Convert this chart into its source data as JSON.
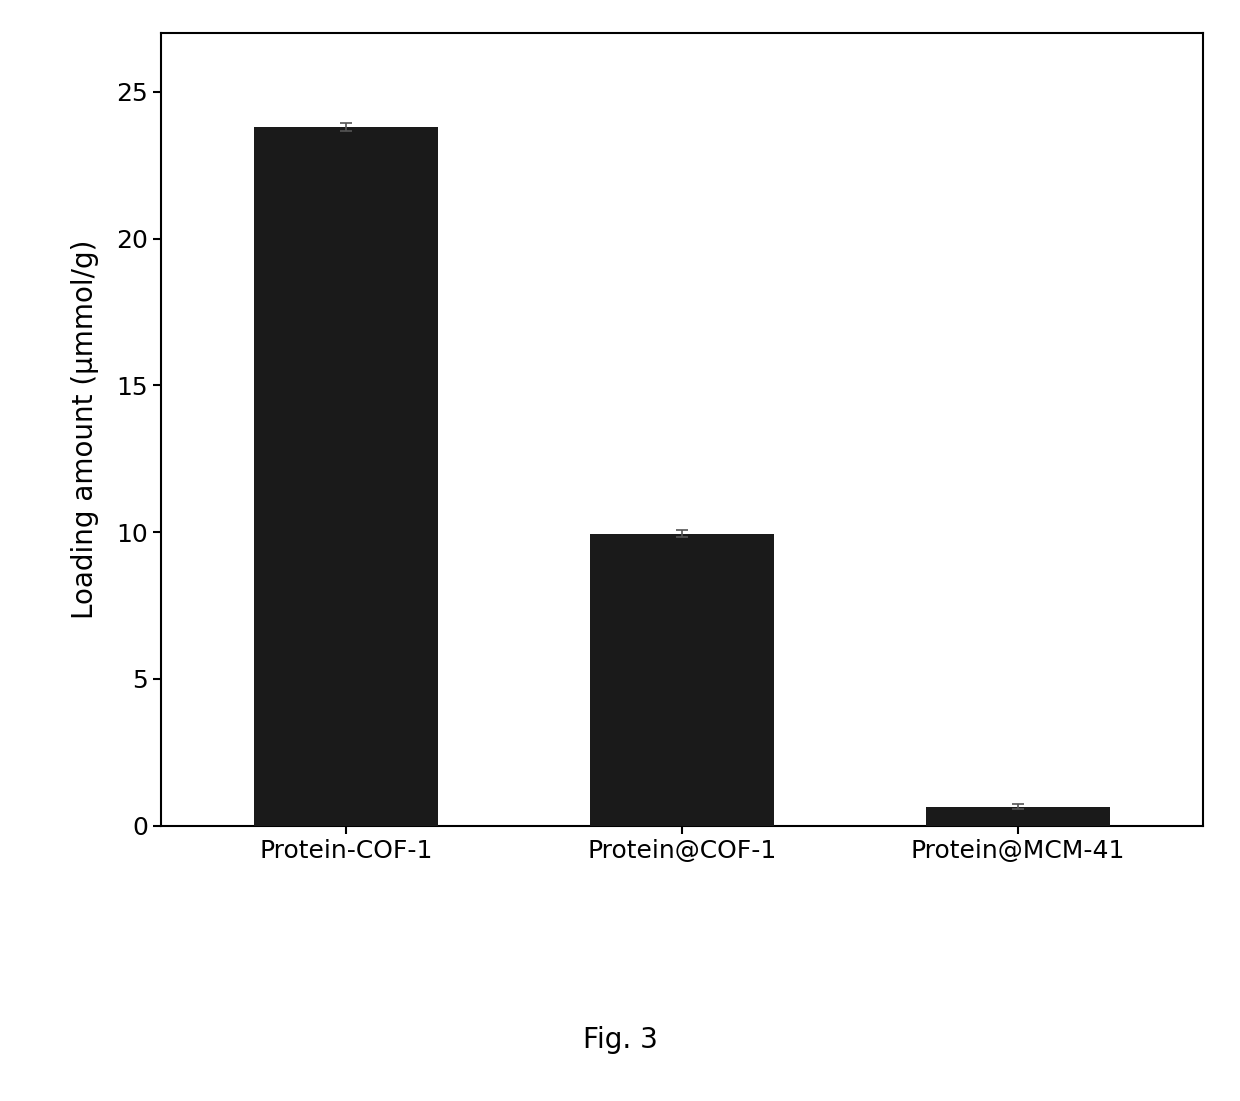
{
  "categories": [
    "Protein-COF-1",
    "Protein@COF-1",
    "Protein@MCM-41"
  ],
  "values": [
    23.8,
    9.95,
    0.65
  ],
  "errors": [
    0.15,
    0.12,
    0.08
  ],
  "bar_color": "#1a1a1a",
  "ylabel": "Loading amount (μmmol/g)",
  "ylim": [
    0,
    27
  ],
  "yticks": [
    0,
    5,
    10,
    15,
    20,
    25
  ],
  "bar_width": 0.55,
  "figure_caption": "Fig. 3",
  "background_color": "#ffffff",
  "spine_color": "#000000",
  "tick_fontsize": 18,
  "label_fontsize": 20,
  "caption_fontsize": 20,
  "bar_positions": [
    0,
    1,
    2
  ],
  "xlim": [
    -0.55,
    2.55
  ]
}
